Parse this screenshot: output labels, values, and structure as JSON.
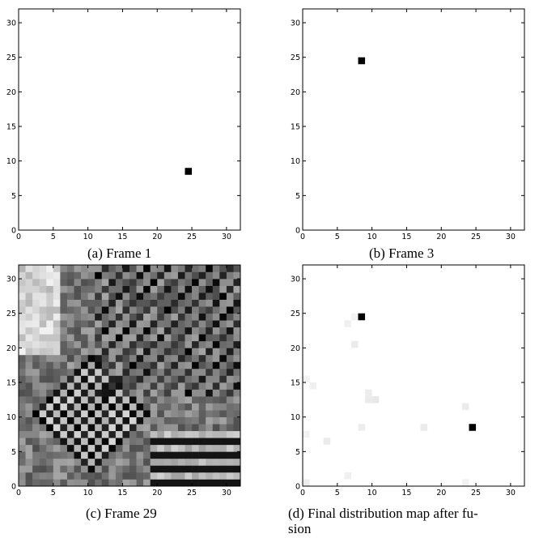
{
  "figure": {
    "captions": [
      "(a) Frame 1",
      "(b) Frame 3",
      "(c) Frame 29",
      "(d) Final distribution map after fu-",
      "sion"
    ]
  },
  "chart_data": [
    {
      "type": "heatmap",
      "title": "",
      "xlabel": "",
      "ylabel": "",
      "xlim": [
        0,
        32
      ],
      "ylim": [
        0,
        32
      ],
      "xticks": [
        0,
        5,
        10,
        15,
        20,
        25,
        30
      ],
      "yticks": [
        0,
        5,
        10,
        15,
        20,
        25,
        30
      ],
      "colormap": "grayscale (white = 0, black = max)",
      "background_value": 0,
      "cells": [
        {
          "x": 24,
          "y": 8,
          "value": 1.0
        }
      ]
    },
    {
      "type": "heatmap",
      "title": "",
      "xlabel": "",
      "ylabel": "",
      "xlim": [
        0,
        32
      ],
      "ylim": [
        0,
        32
      ],
      "xticks": [
        0,
        5,
        10,
        15,
        20,
        25,
        30
      ],
      "yticks": [
        0,
        5,
        10,
        15,
        20,
        25,
        30
      ],
      "colormap": "grayscale (white = 0, black = max)",
      "background_value": 0,
      "cells": [
        {
          "x": 8,
          "y": 24,
          "value": 1.0
        }
      ]
    },
    {
      "type": "heatmap",
      "title": "",
      "xlabel": "",
      "ylabel": "",
      "xlim": [
        0,
        32
      ],
      "ylim": [
        0,
        32
      ],
      "xticks": [
        0,
        5,
        10,
        15,
        20,
        25,
        30
      ],
      "yticks": [
        0,
        5,
        10,
        15,
        20,
        25,
        30
      ],
      "colormap": "grayscale (white = 0, black = max)",
      "grid_size": 32,
      "note_values": "dense 32x32 grid of mid-gray intensities with light region at upper-left, checkerboard dark/light pattern around lower-left center, diagonal streaks toward upper-right, alternating dark/light horizontal bands at lower-right",
      "pattern_seed": 29
    },
    {
      "type": "heatmap",
      "title": "",
      "xlabel": "",
      "ylabel": "",
      "xlim": [
        0,
        32
      ],
      "ylim": [
        0,
        32
      ],
      "xticks": [
        0,
        5,
        10,
        15,
        20,
        25,
        30
      ],
      "yticks": [
        0,
        5,
        10,
        15,
        20,
        25,
        30
      ],
      "colormap": "grayscale (white = 0, black = max)",
      "background_value": 0,
      "cells": [
        {
          "x": 8,
          "y": 24,
          "value": 1.0
        },
        {
          "x": 24,
          "y": 8,
          "value": 1.0
        },
        {
          "x": 6,
          "y": 23,
          "value": 0.06
        },
        {
          "x": 7,
          "y": 20,
          "value": 0.08
        },
        {
          "x": 7,
          "y": 24,
          "value": 0.05
        },
        {
          "x": 0,
          "y": 15,
          "value": 0.05
        },
        {
          "x": 1,
          "y": 14,
          "value": 0.06
        },
        {
          "x": 9,
          "y": 13,
          "value": 0.07
        },
        {
          "x": 9,
          "y": 12,
          "value": 0.08
        },
        {
          "x": 10,
          "y": 12,
          "value": 0.09
        },
        {
          "x": 23,
          "y": 11,
          "value": 0.08
        },
        {
          "x": 8,
          "y": 8,
          "value": 0.07
        },
        {
          "x": 17,
          "y": 8,
          "value": 0.08
        },
        {
          "x": 0,
          "y": 7,
          "value": 0.05
        },
        {
          "x": 3,
          "y": 6,
          "value": 0.08
        },
        {
          "x": 6,
          "y": 1,
          "value": 0.06
        },
        {
          "x": 0,
          "y": 0,
          "value": 0.07
        },
        {
          "x": 23,
          "y": 0,
          "value": 0.05
        }
      ]
    }
  ]
}
